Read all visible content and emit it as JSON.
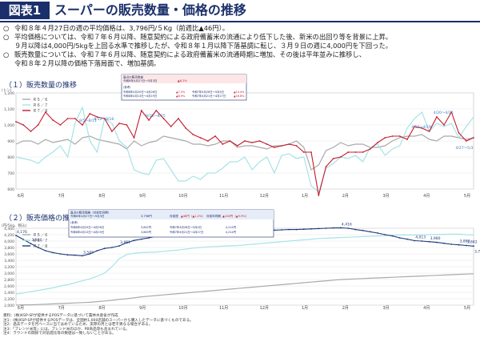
{
  "header": {
    "tag": "図表1",
    "title": "スーパーの販売数量・価格の推移"
  },
  "notes": [
    {
      "marker": "○",
      "lines": [
        "令和８年４月27日の週の平均価格は、3,796円/５Kg（前週比▲46円）。"
      ]
    },
    {
      "marker": "○",
      "lines": [
        "平均価格については、令和７年６月以降、随意契約による政府備蓄米の流通により低下した後、新米の出回り等を背景に上昇。",
        "９月以降は4,000円/5kgを上回る水準で推移したが、令和８年１月以降下落基調に転じ、３月９日の週に4,000円を下回った。"
      ]
    },
    {
      "marker": "○",
      "lines": [
        "販売数量については、令和７年６月以降、随意契約による政府備蓄米の流通時期に増加、その後は平年並みに推移し、",
        "令和８年２月以降の価格下落局面で、増加基調。"
      ]
    }
  ],
  "sections": {
    "volume": "（１）販売数量の推移",
    "price": "（２）販売価格の推移"
  },
  "colors": {
    "r56": "#a9a9a9",
    "r67": "#a7e3e6",
    "r78": "#c41a2e",
    "price_r78": "#1f3a7a",
    "brand": "#1a2f6b"
  },
  "volume_box": {
    "r1": [
      "直近の販売数量",
      "令和8年4月27日～5月3日",
      "▲6.2%"
    ],
    "r2": [
      "(参考)"
    ],
    "r3": [
      "令和8年4月20日～4月26日",
      "▲7.0%",
      "令和7年4月28日～5月4日",
      "▲14.4%"
    ],
    "r4": [
      "令和8年4月13日～4月19日",
      "▲8.9%",
      "令和7年4月21日～4月27日",
      "▲16.8%"
    ]
  },
  "price_box": {
    "r1": [
      "直近の販売価格（対前年同期）",
      "令和8年4月27日～5月3日",
      "3,796円"
    ],
    "r2": [
      "対前週",
      "▲46円（▲1.2%）",
      "対前年同期",
      "▲418円（▲9.9%）"
    ],
    "r3": [
      "(参考)"
    ],
    "r4": [
      "令和8年4月20日～4月26日",
      "3,842円",
      "令和7年4月28日～5月4日",
      "4,214円"
    ],
    "r5": [
      "令和8年4月13日～4月19日",
      "3,863円",
      "令和7年4月21日～4月27日",
      "4,214円"
    ]
  },
  "footnotes": [
    "資料：(株)KSP-SPが提供するPOSデータに基づいて農林水産省が作成",
    "注1：(株)KSP-SPが提供するPOSデータは、全国約1,000店舗のスーパーから購入したデータに基づくものである。",
    "注2：過去データを月ベースに当てはめているため、実際の月とは若干異なる場合がある。",
    "注3：「ブレンド米等」には、ブレンド米のほか、PB商品等も含まれている。",
    "注4：ラウンドの関係で対前週比等の数値は一致しないことがある。"
  ],
  "chart_data": [
    {
      "type": "line",
      "title": "（１）販売数量の推移",
      "ylabel": "(トン)",
      "ylim": [
        0,
        1200
      ],
      "yticks": [
        0,
        100,
        200,
        300,
        400,
        500,
        600,
        700,
        800,
        900,
        1000,
        1100,
        1200
      ],
      "grid": true,
      "legend": "top-left",
      "x_ticks": [
        "6月",
        "7月",
        "8月",
        "9月",
        "10月",
        "11月",
        "12月",
        "1月",
        "2月",
        "3月",
        "4月",
        "5月"
      ],
      "series": [
        {
          "name": "Ｒ５／６",
          "values": [
            880,
            900,
            900,
            880,
            910,
            890,
            900,
            910,
            880,
            920,
            930,
            910,
            900,
            890,
            880,
            850,
            900,
            870,
            890,
            900,
            930,
            920,
            910,
            900,
            880,
            880,
            870,
            880,
            900,
            900,
            860,
            870,
            870,
            860,
            850,
            870,
            870,
            880,
            900,
            860,
            720,
            750,
            840,
            860,
            890,
            870,
            880,
            880,
            860,
            860,
            870,
            900,
            920,
            930,
            930,
            940,
            910,
            900,
            930,
            930,
            920,
            910,
            920
          ]
        },
        {
          "name": "Ｒ６／７",
          "values": [
            800,
            790,
            780,
            760,
            800,
            830,
            870,
            800,
            1010,
            1110,
            900,
            830,
            1040,
            1010,
            900,
            860,
            720,
            700,
            690,
            780,
            790,
            720,
            650,
            650,
            680,
            660,
            700,
            700,
            730,
            770,
            770,
            800,
            720,
            770,
            800,
            700,
            810,
            820,
            790,
            800,
            620,
            580,
            730,
            760,
            800,
            790,
            810,
            770,
            860,
            880,
            810,
            850,
            870,
            980,
            1040,
            1080,
            960,
            1010,
            990,
            1010,
            920,
            990,
            1050
          ]
        },
        {
          "name": "Ｒ７／８",
          "values": [
            1020,
            1000,
            960,
            1000,
            1080,
            1030,
            1000,
            1040,
            1040,
            1000,
            1070,
            1050,
            1040,
            960,
            1010,
            1000,
            920,
            1090,
            1030,
            1090,
            1040,
            990,
            1040,
            980,
            940,
            920,
            900,
            930,
            880,
            900,
            870,
            900,
            890,
            900,
            880,
            860,
            870,
            880,
            870,
            830,
            830,
            560,
            740,
            790,
            800,
            830,
            830,
            830,
            850,
            890,
            920,
            930,
            930,
            910,
            990,
            980,
            960,
            1050,
            1000,
            1080,
            950,
            900,
            920
          ]
        }
      ],
      "annotations": [
        "8/5～8/11",
        "8/12～8/18",
        "8/19～8/25",
        "4/13～4/19",
        "4/20～4/26",
        "4/27～5/3"
      ]
    },
    {
      "type": "line",
      "title": "（２）販売価格の推移",
      "ylabel": "(円/5kg、税込)",
      "ylim": [
        2000,
        4400
      ],
      "yticks": [
        2000,
        2200,
        2400,
        2600,
        2800,
        3000,
        3200,
        3400,
        3600,
        3800,
        4000,
        4200,
        4400
      ],
      "grid": true,
      "legend": "top-left",
      "x_ticks": [
        "6月",
        "7月",
        "8月",
        "9月",
        "10月",
        "11月",
        "12月",
        "1月",
        "2月",
        "3月",
        "4月",
        "5月"
      ],
      "series": [
        {
          "name": "Ｒ５／６",
          "values": [
            2000,
            2010,
            2010,
            2020,
            2030,
            2040,
            2050,
            2060,
            2070,
            2080,
            2090,
            2110,
            2130,
            2150,
            2180,
            2200,
            2230,
            2260,
            2280,
            2300,
            2320,
            2340,
            2360,
            2380,
            2400,
            2420,
            2440,
            2460,
            2480,
            2500,
            2520,
            2540,
            2560,
            2580,
            2600,
            2620,
            2640,
            2660,
            2680,
            2700,
            2720,
            2740,
            2760,
            2780,
            2800,
            2810,
            2820,
            2830,
            2840,
            2850,
            2860,
            2870,
            2880,
            2890,
            2900,
            2910,
            2920,
            2930,
            2940,
            2950,
            2960,
            2970,
            2980
          ]
        },
        {
          "name": "Ｒ６／７",
          "values": [
            2350,
            2380,
            2420,
            2460,
            2500,
            2540,
            2600,
            2640,
            2700,
            2760,
            2820,
            2900,
            3000,
            3200,
            3450,
            3580,
            3620,
            3640,
            3650,
            3660,
            3680,
            3700,
            3720,
            3750,
            3780,
            3800,
            3820,
            3830,
            3840,
            3850,
            3860,
            3880,
            3900,
            3920,
            3940,
            3960,
            3980,
            4000,
            4020,
            4040,
            4060,
            4080,
            4090,
            4100,
            4110,
            4120,
            4130,
            4140,
            4150,
            4160,
            4170,
            4180,
            4190,
            4190,
            4190,
            4200,
            4200,
            4210,
            4210,
            4214,
            4214,
            4200,
            4190
          ]
        },
        {
          "name": "Ｒ７／８",
          "values": [
            4176,
            4050,
            3920,
            3800,
            3700,
            3640,
            3600,
            3570,
            3560,
            3542,
            3600,
            3700,
            3770,
            3800,
            3851,
            3950,
            4020,
            4060,
            4100,
            4155,
            4180,
            4200,
            4220,
            4230,
            4240,
            4250,
            4260,
            4270,
            4280,
            4290,
            4300,
            4310,
            4320,
            4330,
            4340,
            4340,
            4350,
            4360,
            4360,
            4370,
            4380,
            4390,
            4400,
            4410,
            4416,
            4400,
            4360,
            4330,
            4290,
            4250,
            4200,
            4160,
            4100,
            4060,
            4013,
            4000,
            3980,
            3960,
            3930,
            3900,
            3883,
            3863,
            3842
          ]
        }
      ],
      "data_labels": [
        "4,176",
        "3,920",
        "3,542",
        "3,851",
        "4,155",
        "4,416",
        "4,013",
        "3,980",
        "3,883",
        "3,842",
        "3,796"
      ]
    }
  ]
}
